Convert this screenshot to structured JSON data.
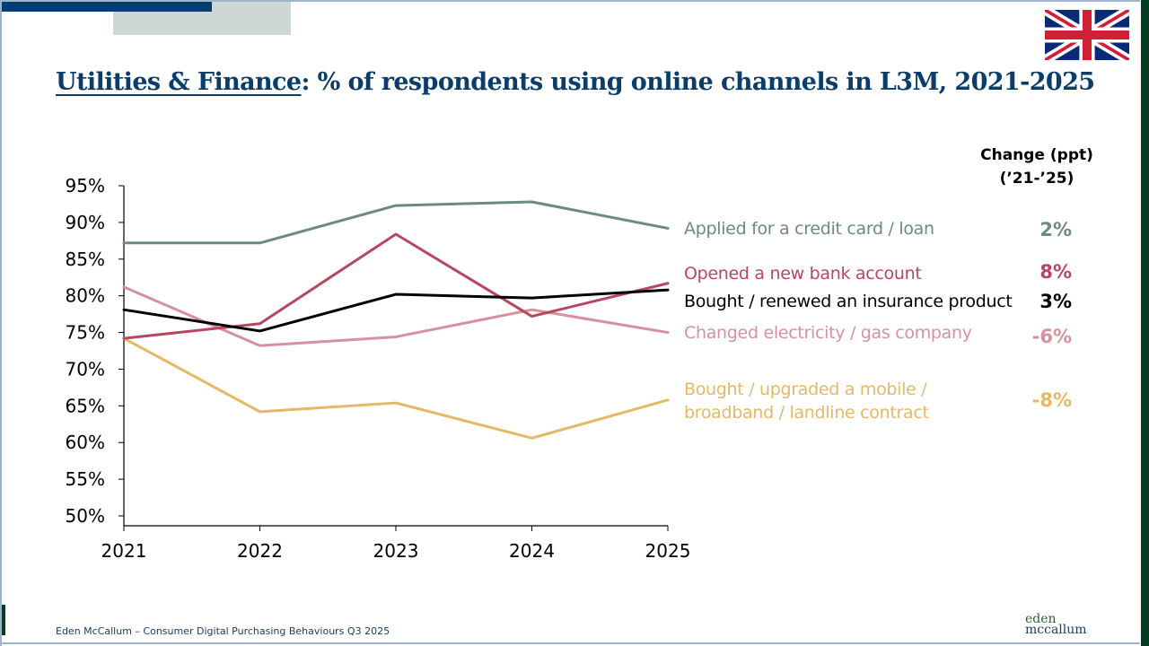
{
  "slide": {
    "title_underlined": "Utilities & Finance",
    "title_rest": ": % of respondents using online channels in L3M, 2021-2025",
    "change_header_line1": "Change (ppt)",
    "change_header_line2": "(’21-’25)",
    "footer": "Eden McCallum – Consumer Digital Purchasing Behaviours Q3 2025",
    "logo_line1": "eden",
    "logo_line2": "mccallum",
    "flag_icon": "uk-flag-icon",
    "colors": {
      "title": "#0b3d6b",
      "accent_dark": "#033e72",
      "accent_grey": "#cdd8d6",
      "brand_green": "#053b22"
    }
  },
  "chart_data": {
    "type": "line",
    "title": "Utilities & Finance: % of respondents using online channels in L3M, 2021-2025",
    "xlabel": "",
    "ylabel": "",
    "x": [
      "2021",
      "2022",
      "2023",
      "2024",
      "2025"
    ],
    "ylim": [
      50,
      95
    ],
    "yticks": [
      50,
      55,
      60,
      65,
      70,
      75,
      80,
      85,
      90,
      95
    ],
    "ytick_labels": [
      "50%",
      "55%",
      "60%",
      "65%",
      "70%",
      "75%",
      "80%",
      "85%",
      "90%",
      "95%"
    ],
    "grid": false,
    "legend": "right (inline labels)",
    "series": [
      {
        "name": "Applied for a credit card / loan",
        "values": [
          87.2,
          87.2,
          92.3,
          92.8,
          89.2
        ],
        "color": "#6b8c7d",
        "change": "2%"
      },
      {
        "name": "Opened a new bank account",
        "values": [
          74.2,
          76.2,
          88.4,
          77.2,
          81.7
        ],
        "color": "#b5485f",
        "change": "8%"
      },
      {
        "name": "Bought / renewed an insurance product",
        "values": [
          78.1,
          75.2,
          80.2,
          79.7,
          80.8
        ],
        "color": "#000000",
        "change": "3%"
      },
      {
        "name": "Changed electricity / gas company",
        "values": [
          81.2,
          73.2,
          74.4,
          78.1,
          75.0
        ],
        "color": "#d8909f",
        "change": "-6%"
      },
      {
        "name": "Bought / upgraded a mobile / broadband / landline contract",
        "name_line1": "Bought / upgraded a mobile /",
        "name_line2": "broadband / landline contract",
        "values": [
          74.2,
          64.2,
          65.4,
          60.6,
          65.8
        ],
        "color": "#e6b865",
        "change": "-8%"
      }
    ]
  }
}
